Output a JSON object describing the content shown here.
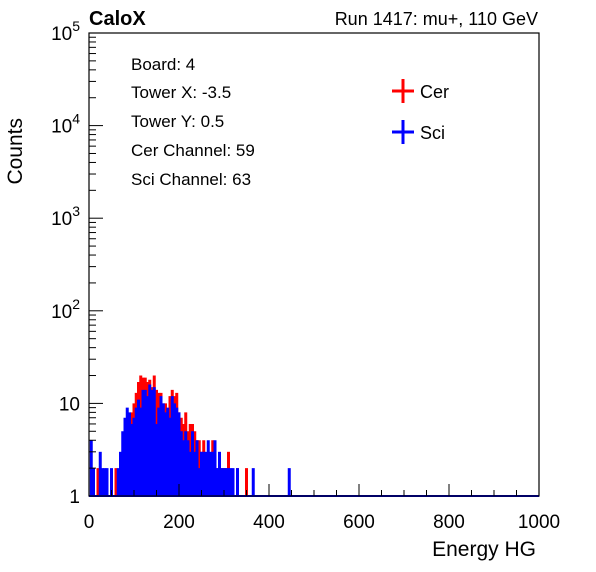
{
  "header": {
    "left": "CaloX",
    "right": "Run 1417: mu+, 110 GeV"
  },
  "info_box": {
    "lines": [
      "Board: 4",
      "Tower X: -3.5",
      "Tower Y: 0.5",
      "Cer Channel: 59",
      "Sci Channel: 63"
    ]
  },
  "colors": {
    "cer": "#ff0000",
    "sci": "#0000ff",
    "axis": "#000000"
  },
  "chart_data": {
    "type": "histogram",
    "title": "",
    "xlabel": "Energy HG",
    "ylabel": "Counts",
    "xlim": [
      0,
      1000
    ],
    "ylim": [
      1,
      100000
    ],
    "yscale": "log",
    "xticks": [
      0,
      200,
      400,
      600,
      800,
      1000
    ],
    "yticks": [
      {
        "value": 1,
        "label": "1"
      },
      {
        "value": 10,
        "label": "10"
      },
      {
        "value": 100,
        "label": "10^2"
      },
      {
        "value": 1000,
        "label": "10^3"
      },
      {
        "value": 10000,
        "label": "10^4"
      },
      {
        "value": 100000,
        "label": "10^5"
      }
    ],
    "legend_position": "top-right",
    "series": [
      {
        "name": "Cer",
        "color": "#ff0000",
        "bins": [
          [
            10,
            2
          ],
          [
            20,
            2
          ],
          [
            30,
            1
          ],
          [
            40,
            1
          ],
          [
            50,
            1
          ],
          [
            60,
            2
          ],
          [
            70,
            2
          ],
          [
            80,
            2
          ],
          [
            85,
            4
          ],
          [
            90,
            6
          ],
          [
            95,
            8
          ],
          [
            100,
            10
          ],
          [
            105,
            13
          ],
          [
            110,
            17
          ],
          [
            115,
            20
          ],
          [
            120,
            19
          ],
          [
            125,
            19
          ],
          [
            130,
            17
          ],
          [
            135,
            18
          ],
          [
            140,
            15
          ],
          [
            145,
            20
          ],
          [
            150,
            14
          ],
          [
            155,
            13
          ],
          [
            160,
            13
          ],
          [
            165,
            10
          ],
          [
            170,
            10
          ],
          [
            175,
            8
          ],
          [
            180,
            12
          ],
          [
            185,
            14
          ],
          [
            190,
            12
          ],
          [
            195,
            13
          ],
          [
            200,
            8
          ],
          [
            205,
            7
          ],
          [
            210,
            6
          ],
          [
            215,
            8
          ],
          [
            220,
            5
          ],
          [
            225,
            6
          ],
          [
            230,
            6
          ],
          [
            235,
            5
          ],
          [
            240,
            4
          ],
          [
            245,
            4
          ],
          [
            250,
            3
          ],
          [
            255,
            4
          ],
          [
            260,
            2
          ],
          [
            265,
            2
          ],
          [
            270,
            2
          ],
          [
            275,
            4
          ],
          [
            280,
            2
          ],
          [
            285,
            2
          ],
          [
            290,
            2
          ],
          [
            295,
            2
          ],
          [
            300,
            2
          ],
          [
            305,
            2
          ],
          [
            310,
            3
          ],
          [
            315,
            1
          ],
          [
            320,
            1
          ],
          [
            325,
            1
          ],
          [
            330,
            2
          ],
          [
            335,
            1
          ],
          [
            340,
            1
          ],
          [
            350,
            2
          ],
          [
            360,
            1
          ],
          [
            380,
            1
          ],
          [
            400,
            1
          ],
          [
            410,
            1
          ],
          [
            420,
            1
          ],
          [
            440,
            1
          ]
        ]
      },
      {
        "name": "Sci",
        "color": "#0000ff",
        "bins": [
          [
            5,
            4
          ],
          [
            10,
            2
          ],
          [
            15,
            1
          ],
          [
            20,
            1
          ],
          [
            25,
            3
          ],
          [
            30,
            2
          ],
          [
            35,
            2
          ],
          [
            40,
            2
          ],
          [
            45,
            1
          ],
          [
            50,
            2
          ],
          [
            55,
            1
          ],
          [
            60,
            1
          ],
          [
            65,
            2
          ],
          [
            70,
            3
          ],
          [
            75,
            5
          ],
          [
            80,
            7
          ],
          [
            85,
            9
          ],
          [
            90,
            8
          ],
          [
            95,
            6
          ],
          [
            100,
            7
          ],
          [
            105,
            9
          ],
          [
            110,
            11
          ],
          [
            115,
            9
          ],
          [
            120,
            14
          ],
          [
            125,
            14
          ],
          [
            130,
            12
          ],
          [
            135,
            16
          ],
          [
            140,
            14
          ],
          [
            145,
            15
          ],
          [
            150,
            6
          ],
          [
            155,
            9
          ],
          [
            160,
            12
          ],
          [
            165,
            10
          ],
          [
            170,
            8
          ],
          [
            175,
            9
          ],
          [
            180,
            7
          ],
          [
            185,
            12
          ],
          [
            190,
            10
          ],
          [
            195,
            9
          ],
          [
            200,
            8
          ],
          [
            205,
            5
          ],
          [
            210,
            4
          ],
          [
            215,
            5
          ],
          [
            220,
            4
          ],
          [
            225,
            3
          ],
          [
            230,
            5
          ],
          [
            235,
            3
          ],
          [
            240,
            4
          ],
          [
            245,
            2
          ],
          [
            250,
            3
          ],
          [
            255,
            3
          ],
          [
            260,
            3
          ],
          [
            265,
            4
          ],
          [
            270,
            3
          ],
          [
            275,
            3
          ],
          [
            280,
            4
          ],
          [
            285,
            2
          ],
          [
            290,
            3
          ],
          [
            295,
            2
          ],
          [
            300,
            2
          ],
          [
            305,
            2
          ],
          [
            310,
            2
          ],
          [
            315,
            2
          ],
          [
            320,
            2
          ],
          [
            330,
            2
          ],
          [
            340,
            1
          ],
          [
            350,
            1
          ],
          [
            360,
            1
          ],
          [
            365,
            2
          ],
          [
            370,
            1
          ],
          [
            380,
            1
          ],
          [
            390,
            1
          ],
          [
            400,
            1
          ],
          [
            420,
            1
          ],
          [
            445,
            2
          ]
        ]
      }
    ]
  }
}
